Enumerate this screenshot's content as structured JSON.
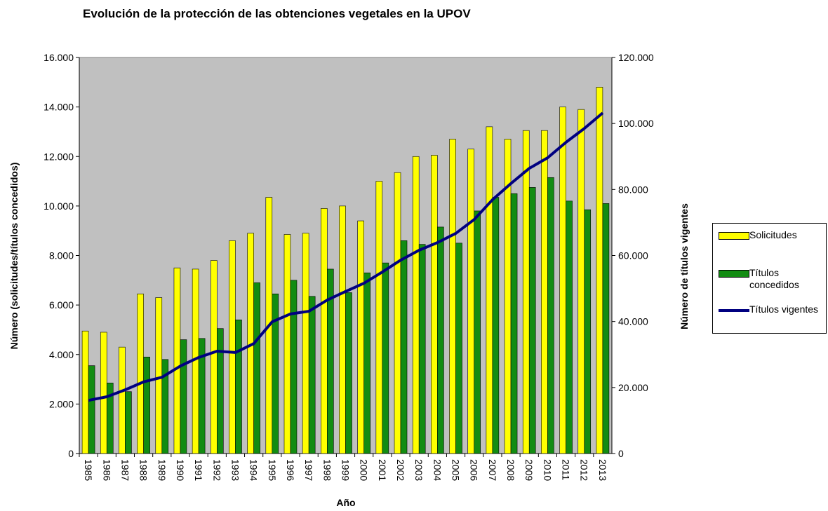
{
  "chart_data": {
    "type": "bar",
    "title": "Evolución de la protección  de las obtenciones vegetales en la UPOV",
    "x_label": "Año",
    "y_label": "Número (solicitudes/títulos  concedidos)",
    "y2_label": "Número de títulos vigentes",
    "categories": [
      "1985",
      "1986",
      "1987",
      "1988",
      "1989",
      "1990",
      "1991",
      "1992",
      "1993",
      "1994",
      "1995",
      "1996",
      "1997",
      "1998",
      "1999",
      "2000",
      "2001",
      "2002",
      "2003",
      "2004",
      "2005",
      "2006",
      "2007",
      "2008",
      "2009",
      "2010",
      "2011",
      "2012",
      "2013"
    ],
    "series": [
      {
        "name": "Solicitudes",
        "type": "bar",
        "color": "#ffff00",
        "values": [
          4950,
          4900,
          4300,
          6450,
          6300,
          7500,
          7450,
          7800,
          8600,
          8900,
          10350,
          8850,
          8900,
          9900,
          10000,
          9400,
          11000,
          11350,
          12000,
          12050,
          12700,
          12300,
          13200,
          12700,
          13050,
          13050,
          14000,
          13900,
          14800
        ]
      },
      {
        "name": "Títulos concedidos",
        "type": "bar",
        "color": "#128c12",
        "values": [
          3550,
          2850,
          2500,
          3900,
          3800,
          4600,
          4650,
          5050,
          5400,
          6900,
          6450,
          7000,
          6350,
          7450,
          6500,
          7300,
          7700,
          8600,
          8450,
          9150,
          8500,
          9800,
          10350,
          10500,
          10750,
          11150,
          10200,
          9850,
          10100
        ]
      },
      {
        "name": "Títulos vigentes",
        "type": "line",
        "axis": "y2",
        "color": "#000080",
        "values": [
          16100,
          17200,
          19300,
          21700,
          23100,
          26500,
          29100,
          31000,
          30600,
          33300,
          39900,
          42300,
          43100,
          46500,
          49100,
          51600,
          55000,
          58600,
          61600,
          63900,
          66700,
          70900,
          76900,
          81800,
          86400,
          89600,
          94300,
          98500,
          103200
        ]
      }
    ],
    "ylim": [
      0,
      16000
    ],
    "yticks": [
      0,
      {
        "value": 2000,
        "label": "2.000"
      },
      {
        "value": 4000,
        "label": "4.000"
      },
      {
        "value": 6000,
        "label": "6.000"
      },
      {
        "value": 8000,
        "label": "8.000"
      },
      {
        "value": 10000,
        "label": "10.000"
      },
      {
        "value": 12000,
        "label": "12.000"
      },
      {
        "value": 14000,
        "label": "14.000"
      },
      {
        "value": 16000,
        "label": "16.000"
      }
    ],
    "y2lim": [
      0,
      120000
    ],
    "y2ticks": [
      0,
      {
        "value": 20000,
        "label": "20.000"
      },
      {
        "value": 40000,
        "label": "40.000"
      },
      {
        "value": 60000,
        "label": "60.000"
      },
      {
        "value": 80000,
        "label": "80.000"
      },
      {
        "value": 100000,
        "label": "100.000"
      },
      {
        "value": 120000,
        "label": "120.000"
      }
    ],
    "plot_background": "#c0c0c0",
    "legend": "right"
  }
}
